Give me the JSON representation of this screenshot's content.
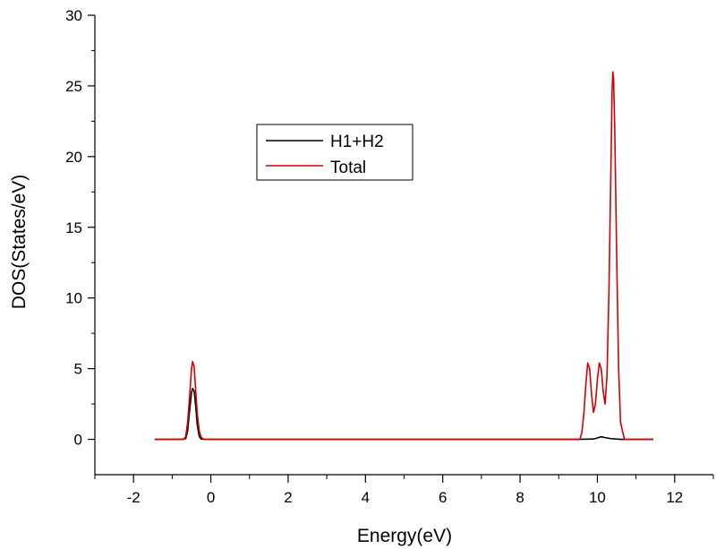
{
  "chart_data": {
    "type": "line",
    "title": "",
    "xlabel": "Energy(eV)",
    "ylabel": "DOS(States/eV)",
    "xlim": [
      -3,
      13
    ],
    "ylim": [
      -2.5,
      30
    ],
    "x_ticks": [
      -2,
      0,
      2,
      4,
      6,
      8,
      10,
      12
    ],
    "x_tick_labels": [
      "-2",
      "0",
      "2",
      "4",
      "6",
      "8",
      "10",
      "12"
    ],
    "y_ticks": [
      0,
      5,
      10,
      15,
      20,
      25,
      30
    ],
    "y_tick_labels": [
      "0",
      "5",
      "10",
      "15",
      "20",
      "25",
      "30"
    ],
    "grid": false,
    "legend_position": "upper-left-center",
    "series": [
      {
        "name": "H1+H2",
        "color": "#000000",
        "x": [
          -1.45,
          -0.75,
          -0.65,
          -0.6,
          -0.55,
          -0.5,
          -0.47,
          -0.43,
          -0.4,
          -0.35,
          -0.3,
          -0.25,
          -0.15,
          9.5,
          9.9,
          10.0,
          10.1,
          10.2,
          10.35,
          10.6,
          11.45
        ],
        "y": [
          0,
          0,
          0.05,
          0.6,
          2.0,
          3.3,
          3.6,
          3.4,
          2.6,
          1.0,
          0.2,
          0.02,
          0,
          0,
          0.02,
          0.1,
          0.18,
          0.12,
          0.05,
          0,
          0
        ]
      },
      {
        "name": "Total",
        "color": "#d40000",
        "x": [
          -1.45,
          -0.7,
          -0.65,
          -0.6,
          -0.55,
          -0.5,
          -0.47,
          -0.43,
          -0.4,
          -0.35,
          -0.3,
          -0.25,
          -0.2,
          -0.15,
          9.55,
          9.6,
          9.65,
          9.7,
          9.75,
          9.8,
          9.85,
          9.9,
          9.95,
          10.0,
          10.05,
          10.1,
          10.15,
          10.2,
          10.25,
          10.3,
          10.35,
          10.38,
          10.4,
          10.42,
          10.45,
          10.5,
          10.55,
          10.6,
          10.7,
          11.45
        ],
        "y": [
          0,
          0,
          0.2,
          1.2,
          3.0,
          5.0,
          5.5,
          5.1,
          3.8,
          1.8,
          0.6,
          0.15,
          0.03,
          0,
          0,
          0.5,
          1.8,
          3.8,
          5.4,
          5.0,
          3.2,
          1.9,
          2.5,
          4.2,
          5.4,
          5.0,
          3.4,
          2.5,
          4.5,
          10.5,
          19.0,
          24.5,
          26.0,
          25.5,
          22.0,
          13.0,
          5.0,
          1.2,
          0,
          0
        ]
      }
    ]
  }
}
